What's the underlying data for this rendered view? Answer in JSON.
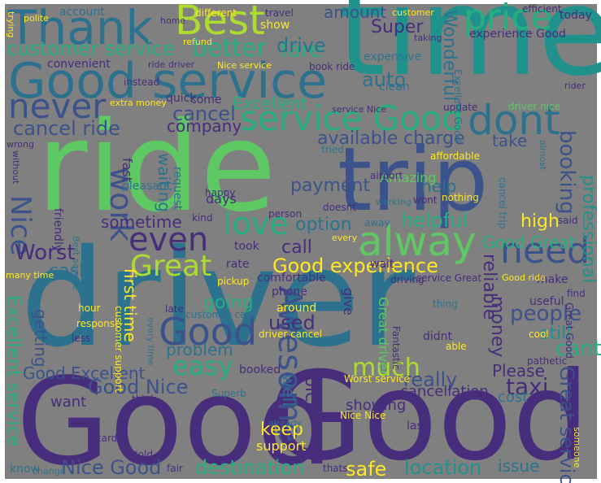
{
  "colors": {
    "background": "#808080",
    "palette": [
      "#472d7b",
      "#3b528b",
      "#2c728e",
      "#21918c",
      "#28ae80",
      "#5ec962",
      "#addc30",
      "#fde725"
    ]
  },
  "words": [
    {
      "id": "driver",
      "text": "driver",
      "color": "#2c728e"
    },
    {
      "id": "good-1",
      "text": "Good",
      "color": "#472d7b"
    },
    {
      "id": "good-2",
      "text": "Good",
      "color": "#472d7b"
    },
    {
      "id": "ride",
      "text": "ride",
      "color": "#5ec962"
    },
    {
      "id": "time",
      "text": "time",
      "color": "#21918c"
    },
    {
      "id": "trip",
      "text": "trip",
      "color": "#3b528b"
    },
    {
      "id": "good-service",
      "text": "Good service",
      "color": "#2c728e"
    },
    {
      "id": "thank",
      "text": "Thank",
      "color": "#2c728e"
    },
    {
      "id": "best",
      "text": "Best",
      "color": "#addc30"
    },
    {
      "id": "price",
      "text": "price",
      "color": "#28ae80"
    },
    {
      "id": "alway",
      "text": "alway",
      "color": "#5ec962"
    },
    {
      "id": "never",
      "text": "never",
      "color": "#3b528b"
    },
    {
      "id": "dont",
      "text": "dont",
      "color": "#2c728e"
    },
    {
      "id": "service-good",
      "text": "service Good",
      "color": "#28ae80"
    },
    {
      "id": "need",
      "text": "need",
      "color": "#3b528b"
    },
    {
      "id": "work",
      "text": "work",
      "color": "#3b528b"
    },
    {
      "id": "even",
      "text": "even",
      "color": "#472d7b"
    },
    {
      "id": "love",
      "text": "love",
      "color": "#28ae80"
    },
    {
      "id": "good-3",
      "text": "Good",
      "color": "#3b528b"
    },
    {
      "id": "awesome",
      "text": "Awesome",
      "color": "#3b528b"
    },
    {
      "id": "great",
      "text": "Great",
      "color": "#addc30"
    },
    {
      "id": "good-experience",
      "text": "Good experience",
      "color": "#fde725"
    },
    {
      "id": "easy",
      "text": "easy",
      "color": "#28ae80"
    },
    {
      "id": "better",
      "text": "better",
      "color": "#28ae80"
    },
    {
      "id": "customer-service",
      "text": "customer service",
      "color": "#28ae80"
    },
    {
      "id": "fare",
      "text": "fare",
      "color": "#28ae80"
    },
    {
      "id": "drive",
      "text": "drive",
      "color": "#2c728e"
    },
    {
      "id": "amount",
      "text": "amount",
      "color": "#3b528b"
    },
    {
      "id": "super",
      "text": "Super",
      "color": "#472d7b"
    },
    {
      "id": "wonderful",
      "text": "Wonderful",
      "color": "#2c728e"
    },
    {
      "id": "cancel-ride",
      "text": "cancel ride",
      "color": "#3b528b"
    },
    {
      "id": "cancel",
      "text": "cancel",
      "color": "#3b528b"
    },
    {
      "id": "excellent-1",
      "text": "Excellent",
      "color": "#28ae80"
    },
    {
      "id": "company",
      "text": "company",
      "color": "#472d7b"
    },
    {
      "id": "auto",
      "text": "auto",
      "color": "#2c728e"
    },
    {
      "id": "available",
      "text": "available",
      "color": "#3b528b"
    },
    {
      "id": "charge",
      "text": "charge",
      "color": "#3b528b"
    },
    {
      "id": "take",
      "text": "take",
      "color": "#3b528b"
    },
    {
      "id": "booking",
      "text": "booking",
      "color": "#3b528b"
    },
    {
      "id": "professional",
      "text": "professional",
      "color": "#21918c"
    },
    {
      "id": "nice-1",
      "text": "Nice",
      "color": "#3b528b"
    },
    {
      "id": "sometime",
      "text": "sometime",
      "color": "#472d7b"
    },
    {
      "id": "worst-1",
      "text": "Worst",
      "color": "#472d7b"
    },
    {
      "id": "cash",
      "text": "cash",
      "color": "#2c728e"
    },
    {
      "id": "option",
      "text": "option",
      "color": "#2c728e"
    },
    {
      "id": "helpful",
      "text": "helpful",
      "color": "#28ae80"
    },
    {
      "id": "high",
      "text": "high",
      "color": "#fde725"
    },
    {
      "id": "good-great",
      "text": "Good Great",
      "color": "#28ae80"
    },
    {
      "id": "call",
      "text": "call",
      "color": "#472d7b"
    },
    {
      "id": "payment",
      "text": "payment",
      "color": "#3b528b"
    },
    {
      "id": "help",
      "text": "help",
      "color": "#2c728e"
    },
    {
      "id": "first-time",
      "text": "first time",
      "color": "#fde725"
    },
    {
      "id": "reliable",
      "text": "reliable",
      "color": "#472d7b"
    },
    {
      "id": "people",
      "text": "people",
      "color": "#3b528b"
    },
    {
      "id": "still",
      "text": "still",
      "color": "#21918c"
    },
    {
      "id": "cant",
      "text": "cant",
      "color": "#28ae80"
    },
    {
      "id": "going",
      "text": "going",
      "color": "#28ae80"
    },
    {
      "id": "used",
      "text": "used",
      "color": "#472d7b"
    },
    {
      "id": "problem",
      "text": "problem",
      "color": "#2c728e"
    },
    {
      "id": "much",
      "text": "much",
      "color": "#addc30"
    },
    {
      "id": "money",
      "text": "money",
      "color": "#472d7b"
    },
    {
      "id": "please",
      "text": "Please",
      "color": "#472d7b"
    },
    {
      "id": "excellent-service",
      "text": "Excellent service",
      "color": "#28ae80"
    },
    {
      "id": "getting",
      "text": "getting",
      "color": "#3b528b"
    },
    {
      "id": "good-excellent",
      "text": "Good Excellent",
      "color": "#3b528b"
    },
    {
      "id": "good-nice",
      "text": "Good Nice",
      "color": "#3b528b"
    },
    {
      "id": "really",
      "text": "really",
      "color": "#3b528b"
    },
    {
      "id": "taxi",
      "text": "taxi",
      "color": "#472d7b"
    },
    {
      "id": "great-service",
      "text": "Great service",
      "color": "#3b528b"
    },
    {
      "id": "keep",
      "text": "keep",
      "color": "#fde725"
    },
    {
      "id": "nice-good",
      "text": "Nice Good",
      "color": "#3b528b"
    },
    {
      "id": "destination",
      "text": "destination",
      "color": "#28ae80"
    },
    {
      "id": "safe",
      "text": "safe",
      "color": "#fde725"
    },
    {
      "id": "location",
      "text": "location",
      "color": "#21918c"
    },
    {
      "id": "issue",
      "text": "issue",
      "color": "#2c728e"
    },
    {
      "id": "pick",
      "text": "pick",
      "color": "#472d7b"
    },
    {
      "id": "well",
      "text": "well",
      "color": "#2c728e"
    },
    {
      "id": "want",
      "text": "want",
      "color": "#472d7b"
    },
    {
      "id": "cancellation",
      "text": "cancellation",
      "color": "#472d7b"
    },
    {
      "id": "showing",
      "text": "showing",
      "color": "#472d7b"
    },
    {
      "id": "cost",
      "text": "cost",
      "color": "#2c728e"
    },
    {
      "id": "support",
      "text": "support",
      "color": "#fde725"
    },
    {
      "id": "fast",
      "text": "fast",
      "color": "#472d7b"
    },
    {
      "id": "waiting",
      "text": "waiting",
      "color": "#2c728e"
    },
    {
      "id": "days",
      "text": "days",
      "color": "#472d7b"
    },
    {
      "id": "expensive",
      "text": "expensive",
      "color": "#2c728e"
    },
    {
      "id": "convenient",
      "text": "convenient",
      "color": "#472d7b"
    },
    {
      "id": "show",
      "text": "show",
      "color": "#fde725"
    },
    {
      "id": "book-ride",
      "text": "book ride",
      "color": "#472d7b"
    },
    {
      "id": "experience-good",
      "text": "experience Good",
      "color": "#472d7b"
    },
    {
      "id": "today",
      "text": "today",
      "color": "#472d7b"
    },
    {
      "id": "account",
      "text": "account",
      "color": "#2c728e"
    },
    {
      "id": "quick",
      "text": "quick",
      "color": "#472d7b"
    },
    {
      "id": "come",
      "text": "come",
      "color": "#472d7b"
    },
    {
      "id": "instead",
      "text": "instead",
      "color": "#472d7b"
    },
    {
      "id": "clean",
      "text": "clean",
      "color": "#2c728e"
    },
    {
      "id": "nice-service",
      "text": "Nice service",
      "color": "#fde725"
    },
    {
      "id": "amazing",
      "text": "Amazing",
      "color": "#5ec962"
    },
    {
      "id": "affordable",
      "text": "affordable",
      "color": "#fde725"
    },
    {
      "id": "pleasant",
      "text": "pleasant",
      "color": "#2c728e"
    },
    {
      "id": "request",
      "text": "request",
      "color": "#2c728e"
    },
    {
      "id": "rate",
      "text": "rate",
      "color": "#472d7b"
    },
    {
      "id": "took",
      "text": "took",
      "color": "#472d7b"
    },
    {
      "id": "phone",
      "text": "phone",
      "color": "#472d7b"
    },
    {
      "id": "around",
      "text": "around",
      "color": "#fde725"
    },
    {
      "id": "comfortable",
      "text": "comfortable",
      "color": "#472d7b"
    },
    {
      "id": "wait",
      "text": "wait",
      "color": "#472d7b"
    },
    {
      "id": "give",
      "text": "give",
      "color": "#472d7b"
    },
    {
      "id": "booked",
      "text": "booked",
      "color": "#472d7b"
    },
    {
      "id": "didnt",
      "text": "didnt",
      "color": "#472d7b"
    },
    {
      "id": "useful",
      "text": "useful",
      "color": "#472d7b"
    },
    {
      "id": "make",
      "text": "make",
      "color": "#472d7b"
    },
    {
      "id": "worst-service",
      "text": "Worst service",
      "color": "#fde725"
    },
    {
      "id": "nice-nice",
      "text": "Nice Nice",
      "color": "#fde725"
    },
    {
      "id": "last",
      "text": "last",
      "color": "#472d7b"
    },
    {
      "id": "know",
      "text": "know",
      "color": "#2c728e"
    },
    {
      "id": "card",
      "text": "card",
      "color": "#472d7b"
    },
    {
      "id": "told",
      "text": "told",
      "color": "#472d7b"
    },
    {
      "id": "fair",
      "text": "fair",
      "color": "#472d7b"
    },
    {
      "id": "thats",
      "text": "thats",
      "color": "#472d7b"
    },
    {
      "id": "doesnt",
      "text": "doesnt",
      "color": "#472d7b"
    },
    {
      "id": "person",
      "text": "person",
      "color": "#472d7b"
    },
    {
      "id": "airport",
      "text": "airport",
      "color": "#472d7b"
    },
    {
      "id": "happy",
      "text": "happy",
      "color": "#472d7b"
    },
    {
      "id": "kind",
      "text": "kind",
      "color": "#472d7b"
    },
    {
      "id": "tried",
      "text": "tried",
      "color": "#2c728e"
    },
    {
      "id": "hour",
      "text": "hour",
      "color": "#fde725"
    },
    {
      "id": "pickup",
      "text": "pickup",
      "color": "#fde725"
    },
    {
      "id": "late",
      "text": "late",
      "color": "#472d7b"
    },
    {
      "id": "customer-care",
      "text": "customer care",
      "color": "#2c728e"
    },
    {
      "id": "driver-cancel",
      "text": "driver cancel",
      "color": "#fde725"
    },
    {
      "id": "response",
      "text": "response",
      "color": "#fde725"
    },
    {
      "id": "less",
      "text": "less",
      "color": "#472d7b"
    },
    {
      "id": "many-time",
      "text": "many time",
      "color": "#fde725"
    },
    {
      "id": "great-driver",
      "text": "Great driver",
      "color": "#5ec962"
    },
    {
      "id": "think",
      "text": "think",
      "color": "#472d7b"
    },
    {
      "id": "superb",
      "text": "Superb",
      "color": "#2c728e"
    },
    {
      "id": "change",
      "text": "change",
      "color": "#2c728e"
    },
    {
      "id": "different",
      "text": "different",
      "color": "#fde725"
    },
    {
      "id": "refund",
      "text": "refund",
      "color": "#fde725"
    },
    {
      "id": "friendly",
      "text": "friendly",
      "color": "#472d7b"
    },
    {
      "id": "travel",
      "text": "travel",
      "color": "#472d7b"
    },
    {
      "id": "customer",
      "text": "customer",
      "color": "#fde725"
    },
    {
      "id": "taking",
      "text": "taking",
      "color": "#472d7b"
    },
    {
      "id": "efficient",
      "text": "efficient",
      "color": "#472d7b"
    },
    {
      "id": "update",
      "text": "update",
      "color": "#472d7b"
    },
    {
      "id": "rider",
      "text": "rider",
      "color": "#472d7b"
    },
    {
      "id": "extra-money",
      "text": "extra money",
      "color": "#fde725"
    },
    {
      "id": "wrong",
      "text": "wrong",
      "color": "#472d7b"
    },
    {
      "id": "without",
      "text": "without",
      "color": "#472d7b"
    },
    {
      "id": "nothing",
      "text": "nothing",
      "color": "#fde725"
    },
    {
      "id": "said",
      "text": "said",
      "color": "#472d7b"
    },
    {
      "id": "find",
      "text": "find",
      "color": "#472d7b"
    },
    {
      "id": "cool",
      "text": "cool",
      "color": "#fde725"
    },
    {
      "id": "pathetic",
      "text": "pathetic",
      "color": "#472d7b"
    },
    {
      "id": "fantastic",
      "text": "Fantastic",
      "color": "#472d7b"
    },
    {
      "id": "good-ride",
      "text": "Good ride",
      "color": "#fde725"
    },
    {
      "id": "thing",
      "text": "thing",
      "color": "#2c728e"
    },
    {
      "id": "able",
      "text": "able",
      "color": "#fde725"
    },
    {
      "id": "every",
      "text": "every",
      "color": "#fde725"
    },
    {
      "id": "service-great",
      "text": "service Great",
      "color": "#472d7b"
    },
    {
      "id": "driving",
      "text": "driving",
      "color": "#472d7b"
    },
    {
      "id": "great-good",
      "text": "Great Good",
      "color": "#472d7b"
    },
    {
      "id": "cancel-trip",
      "text": "cancel trip",
      "color": "#2c728e"
    },
    {
      "id": "away",
      "text": "away",
      "color": "#2c728e"
    },
    {
      "id": "polite",
      "text": "polite",
      "color": "#fde725"
    },
    {
      "id": "home",
      "text": "home",
      "color": "#472d7b"
    },
    {
      "id": "trying",
      "text": "trying",
      "color": "#fde725"
    },
    {
      "id": "customer-support",
      "text": "customer support",
      "color": "#fde725"
    },
    {
      "id": "best-service",
      "text": "Best service",
      "color": "#2c728e"
    },
    {
      "id": "service-nice",
      "text": "service Nice",
      "color": "#472d7b"
    },
    {
      "id": "driver-nice",
      "text": "driver nice",
      "color": "#5ec962"
    },
    {
      "id": "excellent-good",
      "text": "Excellent Good",
      "color": "#2c728e"
    },
    {
      "id": "wont",
      "text": "wont",
      "color": "#472d7b"
    },
    {
      "id": "working",
      "text": "working",
      "color": "#2c728e"
    },
    {
      "id": "almost",
      "text": "almost",
      "color": "#2c728e"
    },
    {
      "id": "already",
      "text": "already",
      "color": "#2c728e"
    },
    {
      "id": "ride-driver",
      "text": "ride driver",
      "color": "#472d7b"
    },
    {
      "id": "someone",
      "text": "someone",
      "color": "#fde725"
    },
    {
      "id": "every-time",
      "text": "every time",
      "color": "#2c728e"
    }
  ]
}
